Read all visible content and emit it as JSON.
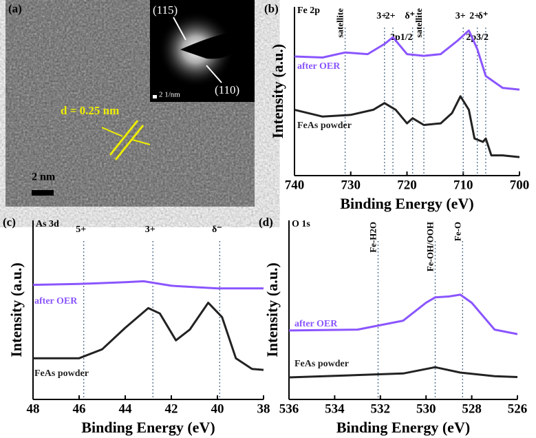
{
  "image_panel": {
    "label": "(a)",
    "inset_labels": [
      "(115)",
      "(110)"
    ],
    "inset_scale": "2 1/nm",
    "d_spacing": "d = 0.25 nm",
    "scale_bar": "2 nm"
  },
  "chart_data": [
    {
      "type": "line",
      "label": "(b)",
      "title": "Fe 2p",
      "xlabel": "Binding Energy (eV)",
      "ylabel": "Intensity (a.u.)",
      "xlim": [
        740,
        700
      ],
      "xticks": [
        740,
        730,
        720,
        710,
        700
      ],
      "ylim": [
        0,
        10
      ],
      "annotations": [
        {
          "text": "satellite",
          "x": 731
        },
        {
          "text": "3+",
          "x": 724
        },
        {
          "text": "2+",
          "x": 722.5
        },
        {
          "text": "δ⁺",
          "x": 719
        },
        {
          "text": "satellite",
          "x": 717
        },
        {
          "text": "3+",
          "x": 710
        },
        {
          "text": "2+",
          "x": 707.5
        },
        {
          "text": "δ⁺",
          "x": 706
        }
      ],
      "peak_labels": [
        {
          "text": "2p1/2",
          "x": 721
        },
        {
          "text": "2p3/2",
          "x": 707.5
        }
      ],
      "series": [
        {
          "name": "after OER",
          "color": "#8a55ff",
          "x": [
            740,
            735,
            731,
            727,
            724,
            722.5,
            720,
            717,
            714,
            711,
            709,
            707.5,
            706,
            703,
            700
          ],
          "values": [
            7.06,
            7.0,
            7.3,
            7.2,
            7.8,
            8.2,
            7.2,
            7.1,
            7.2,
            8.0,
            8.6,
            7.5,
            5.9,
            5.2,
            5.1
          ]
        },
        {
          "name": "FeAs powder",
          "color": "#222222",
          "x": [
            740,
            735,
            730,
            726,
            724,
            722,
            720,
            719,
            717,
            714,
            712,
            710.5,
            709,
            708,
            706.5,
            706,
            705,
            703,
            700
          ],
          "values": [
            3.9,
            3.5,
            3.6,
            3.9,
            4.3,
            3.9,
            3.1,
            3.4,
            3.0,
            3.1,
            3.7,
            4.7,
            3.9,
            2.2,
            2.0,
            2.2,
            1.2,
            1.2,
            1.1
          ]
        }
      ]
    },
    {
      "type": "line",
      "label": "(c)",
      "title": "As 3d",
      "xlabel": "Binding Energy (eV)",
      "ylabel": "Intensity (a.u.)",
      "xlim": [
        48,
        38
      ],
      "xticks": [
        48,
        46,
        44,
        42,
        40,
        38
      ],
      "ylim": [
        0,
        10
      ],
      "annotations": [
        {
          "text": "5+",
          "x": 45.8
        },
        {
          "text": "3+",
          "x": 42.8
        },
        {
          "text": "δ⁻",
          "x": 39.9
        }
      ],
      "series": [
        {
          "name": "after OER",
          "color": "#8a55ff",
          "x": [
            48,
            46,
            44,
            43.2,
            42,
            40,
            38
          ],
          "values": [
            6.4,
            6.45,
            6.55,
            6.6,
            6.35,
            6.2,
            6.2
          ]
        },
        {
          "name": "FeAs powder",
          "color": "#222222",
          "x": [
            48,
            46,
            45,
            44,
            43,
            42.5,
            41.8,
            41.2,
            40.4,
            39.8,
            39.2,
            38.5,
            38
          ],
          "values": [
            2.3,
            2.3,
            2.8,
            4.0,
            5.1,
            4.8,
            3.3,
            3.9,
            5.4,
            4.6,
            2.3,
            1.7,
            1.65
          ]
        }
      ]
    },
    {
      "type": "line",
      "label": "(d)",
      "title": "O 1s",
      "xlabel": "Binding Energy (eV)",
      "ylabel": "Intensity (a.u.)",
      "xlim": [
        536,
        526
      ],
      "xticks": [
        536,
        534,
        532,
        530,
        528,
        526
      ],
      "ylim": [
        0,
        10
      ],
      "annotations": [
        {
          "text": "Fe-H2O",
          "x": 532.1
        },
        {
          "text": "Fe-OH/OOH",
          "x": 529.6
        },
        {
          "text": "Fe-O",
          "x": 528.4
        }
      ],
      "series": [
        {
          "name": "after OER",
          "color": "#8a55ff",
          "x": [
            536,
            533,
            531,
            530,
            529.6,
            529,
            528.5,
            528,
            527,
            526
          ],
          "values": [
            3.85,
            3.9,
            4.4,
            5.4,
            5.7,
            5.75,
            5.85,
            5.4,
            3.9,
            3.65
          ]
        },
        {
          "name": "FeAs powder",
          "color": "#222222",
          "x": [
            536,
            531,
            529.6,
            528.5,
            527,
            526
          ],
          "values": [
            1.23,
            1.45,
            1.8,
            1.5,
            1.3,
            1.25
          ]
        }
      ]
    }
  ]
}
